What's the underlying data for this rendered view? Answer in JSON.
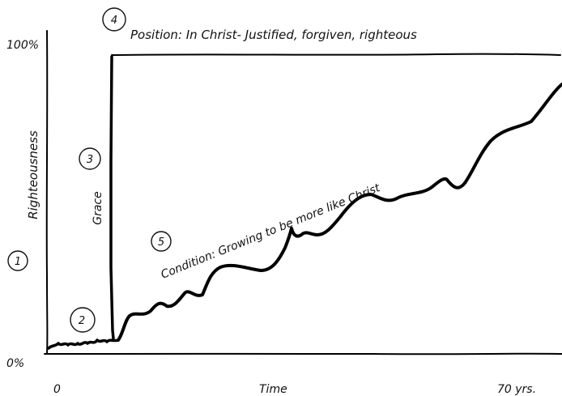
{
  "axes": {
    "y_label": "Righteousness",
    "x_label": "Time",
    "y_top": "100%",
    "y_bottom": "0%",
    "x_start": "0",
    "x_end": "70 yrs."
  },
  "markers": [
    "1",
    "2",
    "3",
    "4",
    "5"
  ],
  "labels": {
    "position": "Position: In Christ- Justified, forgiven, righteous",
    "grace": "Grace",
    "condition": "Condition: Growing to be more like Christ"
  }
}
